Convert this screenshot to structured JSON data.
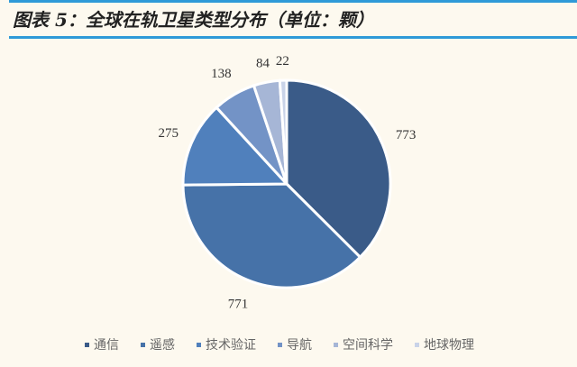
{
  "title": "图表 5：全球在轨卫星类型分布（单位：颗）",
  "colors": {
    "rule": "#2f9ad8",
    "background": "#fdf9ef"
  },
  "chart_data": {
    "type": "pie",
    "title": "图表 5：全球在轨卫星类型分布（单位：颗）",
    "start": "12 o'clock, clockwise",
    "legend_placement": "bottom",
    "categories": [
      "通信",
      "遥感",
      "技术验证",
      "导航",
      "空间科学",
      "地球物理"
    ],
    "values": [
      773,
      771,
      275,
      138,
      84,
      22
    ],
    "value_labels": [
      "773",
      "771",
      "275",
      "138",
      "84",
      "22"
    ],
    "colors": [
      "#3a5b88",
      "#4672a8",
      "#5080bc",
      "#7393c6",
      "#a6b6d6",
      "#c9d3e8"
    ]
  }
}
